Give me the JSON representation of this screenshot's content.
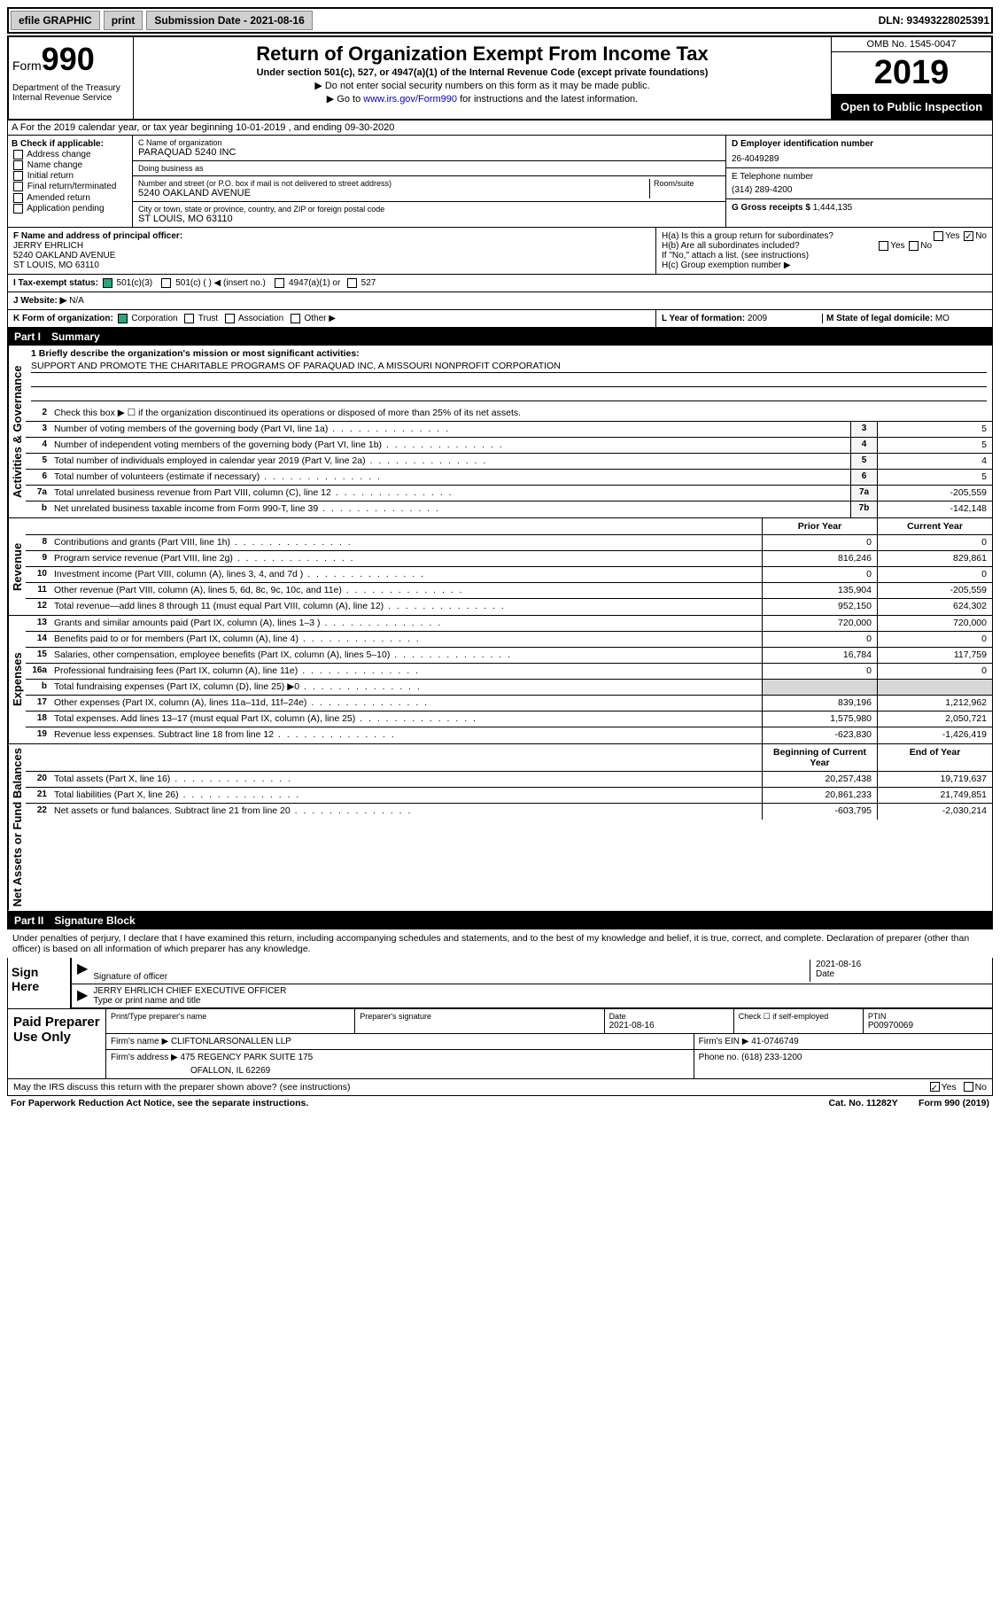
{
  "topbar": {
    "efile_label": "efile GRAPHIC",
    "print_btn": "print",
    "submission_label": "Submission Date - 2021-08-16",
    "dln_label": "DLN: 93493228025391"
  },
  "header": {
    "form_label": "Form",
    "form_num": "990",
    "dept": "Department of the Treasury\nInternal Revenue Service",
    "title": "Return of Organization Exempt From Income Tax",
    "subtitle": "Under section 501(c), 527, or 4947(a)(1) of the Internal Revenue Code (except private foundations)",
    "note1": "▶ Do not enter social security numbers on this form as it may be made public.",
    "note2_a": "▶ Go to ",
    "note2_link": "www.irs.gov/Form990",
    "note2_b": " for instructions and the latest information.",
    "omb": "OMB No. 1545-0047",
    "year": "2019",
    "open_public": "Open to Public Inspection"
  },
  "rowA": "A For the 2019 calendar year, or tax year beginning 10-01-2019   , and ending 09-30-2020",
  "entity": {
    "b_label": "B Check if applicable:",
    "b_opts": [
      "Address change",
      "Name change",
      "Initial return",
      "Final return/terminated",
      "Amended return",
      "Application pending"
    ],
    "c_label": "C Name of organization",
    "c_name": "PARAQUAD 5240 INC",
    "dba_label": "Doing business as",
    "addr_label": "Number and street (or P.O. box if mail is not delivered to street address)",
    "room_label": "Room/suite",
    "addr": "5240 OAKLAND AVENUE",
    "city_label": "City or town, state or province, country, and ZIP or foreign postal code",
    "city": "ST LOUIS, MO  63110",
    "d_label": "D Employer identification number",
    "d_val": "26-4049289",
    "e_label": "E Telephone number",
    "e_val": "(314) 289-4200",
    "g_label": "G Gross receipts $",
    "g_val": "1,444,135"
  },
  "officer": {
    "f_label": "F  Name and address of principal officer:",
    "name": "JERRY EHRLICH",
    "addr1": "5240 OAKLAND AVENUE",
    "addr2": "ST LOUIS, MO  63110"
  },
  "h": {
    "ha_label": "H(a)  Is this a group return for subordinates?",
    "hb_label": "H(b)  Are all subordinates included?",
    "hb_note": "If \"No,\" attach a list. (see instructions)",
    "hc_label": "H(c)  Group exemption number ▶",
    "yes": "Yes",
    "no": "No"
  },
  "tax_status": {
    "i_label": "I   Tax-exempt status:",
    "o1": "501(c)(3)",
    "o2": "501(c) (  ) ◀ (insert no.)",
    "o3": "4947(a)(1) or",
    "o4": "527"
  },
  "website": {
    "j_label": "J   Website: ▶",
    "val": "N/A"
  },
  "k": {
    "label": "K Form of organization:",
    "o1": "Corporation",
    "o2": "Trust",
    "o3": "Association",
    "o4": "Other ▶"
  },
  "l": {
    "label": "L Year of formation:",
    "val": "2009"
  },
  "m": {
    "label": "M State of legal domicile:",
    "val": "MO"
  },
  "part1": {
    "label": "Part I",
    "title": "Summary"
  },
  "summary": {
    "l1_label": "1  Briefly describe the organization's mission or most significant activities:",
    "mission": "SUPPORT AND PROMOTE THE CHARITABLE PROGRAMS OF PARAQUAD INC, A MISSOURI NONPROFIT CORPORATION",
    "l2": "Check this box ▶ ☐  if the organization discontinued its operations or disposed of more than 25% of its net assets.",
    "rows_gov": [
      {
        "n": "3",
        "d": "Number of voting members of the governing body (Part VI, line 1a)",
        "b": "3",
        "v": "5"
      },
      {
        "n": "4",
        "d": "Number of independent voting members of the governing body (Part VI, line 1b)",
        "b": "4",
        "v": "5"
      },
      {
        "n": "5",
        "d": "Total number of individuals employed in calendar year 2019 (Part V, line 2a)",
        "b": "5",
        "v": "4"
      },
      {
        "n": "6",
        "d": "Total number of volunteers (estimate if necessary)",
        "b": "6",
        "v": "5"
      },
      {
        "n": "7a",
        "d": "Total unrelated business revenue from Part VIII, column (C), line 12",
        "b": "7a",
        "v": "-205,559"
      },
      {
        "n": "b",
        "d": "Net unrelated business taxable income from Form 990-T, line 39",
        "b": "7b",
        "v": "-142,148"
      }
    ],
    "col_prior": "Prior Year",
    "col_current": "Current Year",
    "rev_rows": [
      {
        "n": "8",
        "d": "Contributions and grants (Part VIII, line 1h)",
        "p": "0",
        "c": "0"
      },
      {
        "n": "9",
        "d": "Program service revenue (Part VIII, line 2g)",
        "p": "816,246",
        "c": "829,861"
      },
      {
        "n": "10",
        "d": "Investment income (Part VIII, column (A), lines 3, 4, and 7d )",
        "p": "0",
        "c": "0"
      },
      {
        "n": "11",
        "d": "Other revenue (Part VIII, column (A), lines 5, 6d, 8c, 9c, 10c, and 11e)",
        "p": "135,904",
        "c": "-205,559"
      },
      {
        "n": "12",
        "d": "Total revenue—add lines 8 through 11 (must equal Part VIII, column (A), line 12)",
        "p": "952,150",
        "c": "624,302"
      }
    ],
    "exp_rows": [
      {
        "n": "13",
        "d": "Grants and similar amounts paid (Part IX, column (A), lines 1–3 )",
        "p": "720,000",
        "c": "720,000"
      },
      {
        "n": "14",
        "d": "Benefits paid to or for members (Part IX, column (A), line 4)",
        "p": "0",
        "c": "0"
      },
      {
        "n": "15",
        "d": "Salaries, other compensation, employee benefits (Part IX, column (A), lines 5–10)",
        "p": "16,784",
        "c": "117,759"
      },
      {
        "n": "16a",
        "d": "Professional fundraising fees (Part IX, column (A), line 11e)",
        "p": "0",
        "c": "0"
      },
      {
        "n": "b",
        "d": "Total fundraising expenses (Part IX, column (D), line 25) ▶0",
        "p": "",
        "c": "",
        "grey": true
      },
      {
        "n": "17",
        "d": "Other expenses (Part IX, column (A), lines 11a–11d, 11f–24e)",
        "p": "839,196",
        "c": "1,212,962"
      },
      {
        "n": "18",
        "d": "Total expenses. Add lines 13–17 (must equal Part IX, column (A), line 25)",
        "p": "1,575,980",
        "c": "2,050,721"
      },
      {
        "n": "19",
        "d": "Revenue less expenses. Subtract line 18 from line 12",
        "p": "-623,830",
        "c": "-1,426,419"
      }
    ],
    "col_begin": "Beginning of Current Year",
    "col_end": "End of Year",
    "net_rows": [
      {
        "n": "20",
        "d": "Total assets (Part X, line 16)",
        "p": "20,257,438",
        "c": "19,719,637"
      },
      {
        "n": "21",
        "d": "Total liabilities (Part X, line 26)",
        "p": "20,861,233",
        "c": "21,749,851"
      },
      {
        "n": "22",
        "d": "Net assets or fund balances. Subtract line 21 from line 20",
        "p": "-603,795",
        "c": "-2,030,214"
      }
    ]
  },
  "vlabels": {
    "gov": "Activities & Governance",
    "rev": "Revenue",
    "exp": "Expenses",
    "net": "Net Assets or Fund Balances"
  },
  "part2": {
    "label": "Part II",
    "title": "Signature Block"
  },
  "sig": {
    "declaration": "Under penalties of perjury, I declare that I have examined this return, including accompanying schedules and statements, and to the best of my knowledge and belief, it is true, correct, and complete. Declaration of preparer (other than officer) is based on all information of which preparer has any knowledge.",
    "sign_here": "Sign Here",
    "sig_officer": "Signature of officer",
    "date_lbl": "Date",
    "date_val": "2021-08-16",
    "name_title": "JERRY EHRLICH  CHIEF EXECUTIVE OFFICER",
    "type_lbl": "Type or print name and title"
  },
  "preparer": {
    "label": "Paid Preparer Use Only",
    "print_name_lbl": "Print/Type preparer's name",
    "sig_lbl": "Preparer's signature",
    "date_lbl": "Date",
    "date_val": "2021-08-16",
    "check_lbl": "Check ☐ if self-employed",
    "ptin_lbl": "PTIN",
    "ptin_val": "P00970069",
    "firm_name_lbl": "Firm's name    ▶",
    "firm_name": "CLIFTONLARSONALLEN LLP",
    "firm_ein_lbl": "Firm's EIN ▶",
    "firm_ein": "41-0746749",
    "firm_addr_lbl": "Firm's address ▶",
    "firm_addr1": "475 REGENCY PARK SUITE 175",
    "firm_addr2": "OFALLON, IL  62269",
    "phone_lbl": "Phone no.",
    "phone": "(618) 233-1200"
  },
  "discuss": {
    "q": "May the IRS discuss this return with the preparer shown above? (see instructions)",
    "yes": "Yes",
    "no": "No"
  },
  "footer": {
    "left": "For Paperwork Reduction Act Notice, see the separate instructions.",
    "mid": "Cat. No. 11282Y",
    "right": "Form 990 (2019)"
  }
}
